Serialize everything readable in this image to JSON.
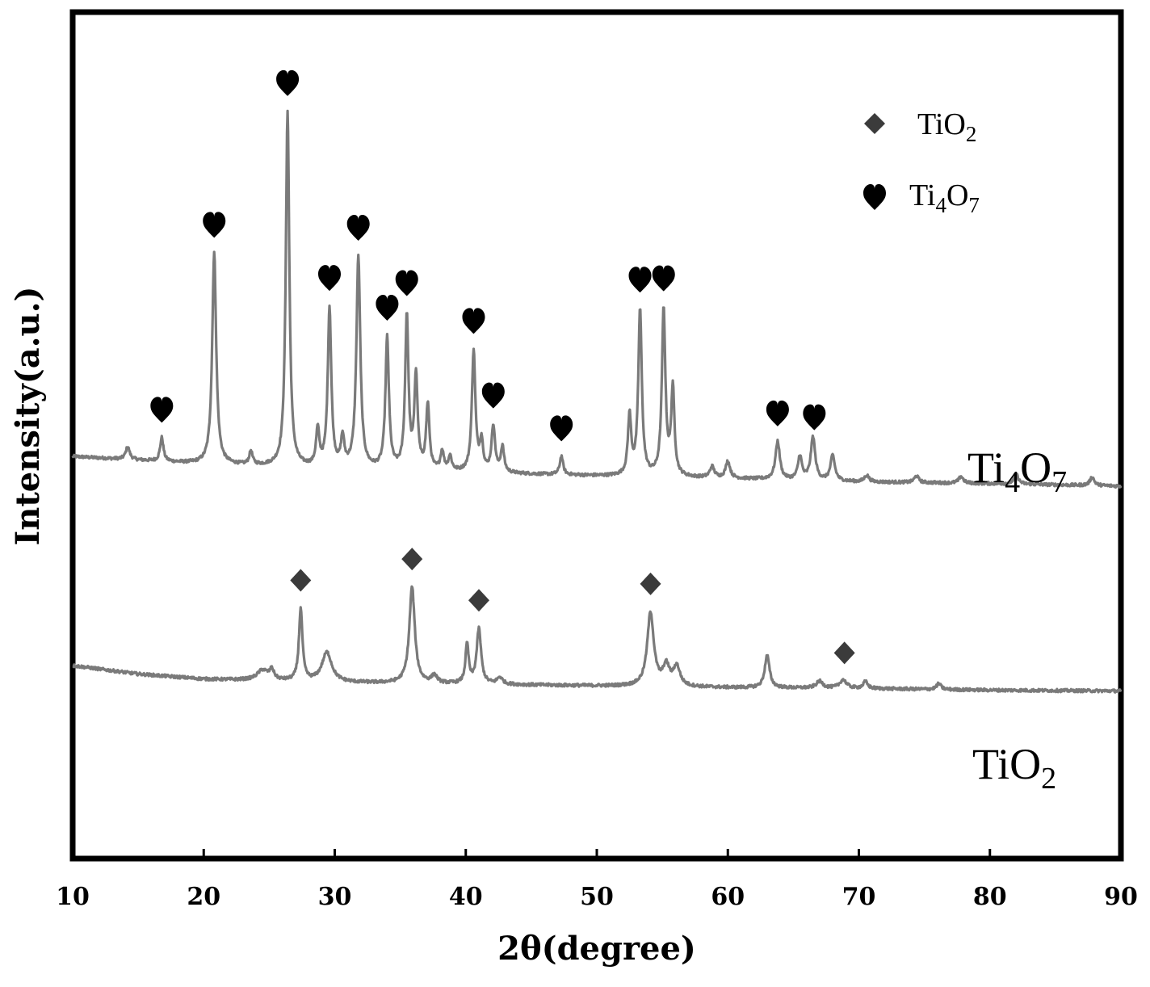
{
  "chart_data": {
    "type": "line",
    "title": "",
    "xlabel": "2θ(degree)",
    "ylabel": "Intensity(a.u.)",
    "xlim": [
      10,
      90
    ],
    "ylim": [
      0,
      100
    ],
    "xticks": [
      10,
      20,
      30,
      40,
      50,
      60,
      70,
      80,
      90
    ],
    "xtick_labels": [
      "10",
      "20",
      "30",
      "40",
      "50",
      "60",
      "70",
      "80",
      "90"
    ],
    "grid": false,
    "legend": {
      "placement": "top-right",
      "entries": [
        {
          "symbol": "diamond",
          "base": "TiO",
          "sub": "2",
          "label": "TiO2"
        },
        {
          "symbol": "heart",
          "base": "Ti",
          "sub1": "4",
          "mid": "O",
          "sub2": "7",
          "label": "Ti4O7"
        }
      ]
    },
    "series": [
      {
        "name": "Ti4O7",
        "label": {
          "base": "Ti",
          "sub1": "4",
          "mid": "O",
          "sub2": "7"
        },
        "baseline": [
          [
            10,
            47.5
          ],
          [
            20,
            46.6
          ],
          [
            30,
            46.0
          ],
          [
            40,
            45.6
          ],
          [
            50,
            45.2
          ],
          [
            60,
            44.9
          ],
          [
            70,
            44.5
          ],
          [
            80,
            44.3
          ],
          [
            90,
            44.0
          ]
        ],
        "peaks": [
          [
            14.2,
            1.5,
            0.18
          ],
          [
            16.8,
            2.8,
            0.15
          ],
          [
            20.8,
            25.0,
            0.18
          ],
          [
            23.6,
            1.6,
            0.15
          ],
          [
            26.4,
            42.0,
            0.16
          ],
          [
            28.7,
            4.3,
            0.15
          ],
          [
            29.6,
            18.8,
            0.16
          ],
          [
            30.6,
            3.4,
            0.15
          ],
          [
            31.8,
            25.0,
            0.18
          ],
          [
            34.0,
            15.5,
            0.16
          ],
          [
            35.5,
            18.1,
            0.15
          ],
          [
            36.2,
            11.0,
            0.15
          ],
          [
            37.1,
            7.7,
            0.15
          ],
          [
            38.2,
            2.3,
            0.15
          ],
          [
            38.8,
            1.7,
            0.15
          ],
          [
            40.6,
            14.3,
            0.16
          ],
          [
            41.2,
            3.5,
            0.15
          ],
          [
            42.1,
            5.5,
            0.16
          ],
          [
            42.8,
            3.0,
            0.15
          ],
          [
            47.3,
            2.2,
            0.15
          ],
          [
            52.5,
            7.0,
            0.15
          ],
          [
            53.3,
            19.6,
            0.16
          ],
          [
            55.1,
            19.6,
            0.16
          ],
          [
            55.8,
            10.2,
            0.15
          ],
          [
            58.8,
            1.3,
            0.2
          ],
          [
            60.0,
            2.0,
            0.2
          ],
          [
            63.8,
            4.5,
            0.2
          ],
          [
            65.5,
            2.8,
            0.18
          ],
          [
            66.5,
            5.1,
            0.2
          ],
          [
            68.0,
            3.0,
            0.2
          ],
          [
            70.6,
            0.8,
            0.2
          ],
          [
            74.4,
            0.8,
            0.2
          ],
          [
            77.8,
            0.8,
            0.2
          ],
          [
            82.0,
            1.2,
            0.2
          ],
          [
            87.8,
            1.0,
            0.2
          ]
        ],
        "markers": [
          {
            "symbol": "heart",
            "x": 16.8
          },
          {
            "symbol": "heart",
            "x": 20.8
          },
          {
            "symbol": "heart",
            "x": 26.4
          },
          {
            "symbol": "heart",
            "x": 29.6
          },
          {
            "symbol": "heart",
            "x": 31.8
          },
          {
            "symbol": "heart",
            "x": 34.0
          },
          {
            "symbol": "heart",
            "x": 35.5
          },
          {
            "symbol": "heart",
            "x": 40.6
          },
          {
            "symbol": "heart",
            "x": 42.1
          },
          {
            "symbol": "heart",
            "x": 47.3
          },
          {
            "symbol": "heart",
            "x": 53.3
          },
          {
            "symbol": "heart",
            "x": 55.1
          },
          {
            "symbol": "heart",
            "x": 63.8
          },
          {
            "symbol": "heart",
            "x": 66.6
          }
        ]
      },
      {
        "name": "TiO2",
        "label": {
          "base": "TiO",
          "sub": "2"
        },
        "baseline": [
          [
            10,
            22.8
          ],
          [
            15,
            21.8
          ],
          [
            20,
            21.2
          ],
          [
            30,
            20.8
          ],
          [
            40,
            20.6
          ],
          [
            50,
            20.4
          ],
          [
            60,
            20.2
          ],
          [
            70,
            20.1
          ],
          [
            80,
            19.9
          ],
          [
            90,
            19.8
          ]
        ],
        "peaks": [
          [
            24.5,
            1.2,
            0.5
          ],
          [
            25.2,
            1.1,
            0.2
          ],
          [
            27.4,
            8.5,
            0.16
          ],
          [
            29.4,
            3.5,
            0.45
          ],
          [
            35.9,
            11.4,
            0.25
          ],
          [
            37.6,
            0.9,
            0.25
          ],
          [
            40.1,
            4.6,
            0.15
          ],
          [
            41.0,
            6.5,
            0.2
          ],
          [
            42.6,
            0.8,
            0.25
          ],
          [
            54.1,
            8.7,
            0.3
          ],
          [
            55.3,
            2.3,
            0.3
          ],
          [
            56.1,
            2.3,
            0.3
          ],
          [
            63.0,
            3.8,
            0.22
          ],
          [
            67.0,
            0.8,
            0.3
          ],
          [
            68.8,
            1.0,
            0.3
          ],
          [
            70.5,
            0.8,
            0.2
          ],
          [
            76.1,
            0.7,
            0.2
          ]
        ],
        "markers": [
          {
            "symbol": "diamond",
            "x": 27.4
          },
          {
            "symbol": "diamond",
            "x": 35.9
          },
          {
            "symbol": "diamond",
            "x": 41.0
          },
          {
            "symbol": "diamond",
            "x": 54.1
          },
          {
            "symbol": "diamond",
            "x": 68.9
          }
        ]
      }
    ]
  }
}
